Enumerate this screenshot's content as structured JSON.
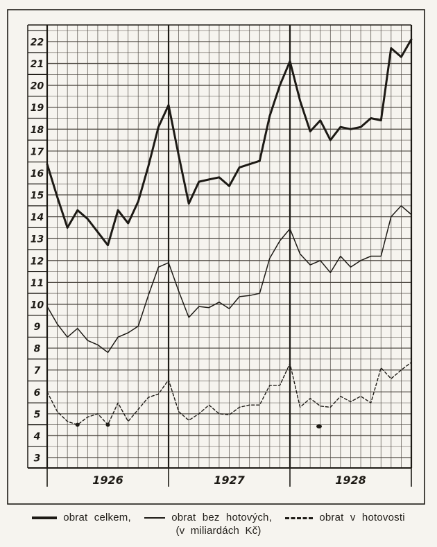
{
  "figure": {
    "legend": [
      {
        "label": "obrat celkem,",
        "style": "thick"
      },
      {
        "label": "obrat bez hotových,",
        "style": "thin"
      },
      {
        "label": "obrat v hotovosti",
        "style": "dashed"
      }
    ],
    "caption": "(v miliardách Kč)"
  },
  "chart_data": {
    "type": "line",
    "title": "",
    "unit": "miliardy Kč",
    "x_axis": {
      "year_labels": [
        "1926",
        "1927",
        "1928"
      ],
      "months_per_year": 12,
      "points_note": "37 monthly points: left plot edge (start of 1926) to right plot edge (end of 1928); year-boundary gridlines are thicker"
    },
    "y_axis": {
      "ticks": [
        22,
        21,
        20,
        19,
        18,
        17,
        16,
        15,
        14,
        13,
        12,
        11,
        10,
        9,
        8,
        7,
        6,
        5,
        4,
        3
      ],
      "min": 3,
      "max": 22,
      "minor_grid_step": 0.5
    },
    "grid": true,
    "legend_position": "below",
    "series": [
      {
        "name": "obrat celkem",
        "style": "thick",
        "values": [
          16.4,
          14.9,
          13.5,
          14.3,
          13.9,
          13.3,
          12.7,
          14.3,
          13.7,
          14.7,
          16.3,
          18.1,
          19.1,
          16.8,
          14.6,
          15.6,
          15.7,
          15.8,
          15.4,
          16.25,
          16.4,
          16.55,
          18.6,
          20.0,
          21.1,
          19.3,
          17.9,
          18.4,
          17.5,
          18.1,
          18.0,
          18.1,
          18.5,
          18.4,
          21.7,
          21.3,
          22.1
        ]
      },
      {
        "name": "obrat bez hotových",
        "style": "thin",
        "values": [
          9.9,
          9.1,
          8.5,
          8.9,
          8.35,
          8.15,
          7.8,
          8.5,
          8.7,
          9.0,
          10.4,
          11.7,
          11.9,
          10.6,
          9.4,
          9.9,
          9.85,
          10.1,
          9.8,
          10.35,
          10.4,
          10.5,
          12.1,
          12.9,
          13.45,
          12.3,
          11.8,
          12.0,
          11.45,
          12.2,
          11.7,
          12.0,
          12.2,
          12.2,
          14.0,
          14.5,
          14.1
        ]
      },
      {
        "name": "obrat v hotovosti",
        "style": "dashed",
        "values": [
          6.0,
          5.1,
          4.65,
          4.5,
          4.85,
          5.0,
          4.5,
          5.5,
          4.65,
          5.2,
          5.75,
          5.9,
          6.55,
          5.1,
          4.7,
          5.0,
          5.4,
          5.0,
          4.95,
          5.3,
          5.4,
          5.4,
          6.3,
          6.3,
          7.3,
          5.3,
          5.7,
          5.35,
          5.3,
          5.8,
          5.55,
          5.8,
          5.5,
          7.1,
          6.6,
          7.0,
          7.35
        ]
      }
    ],
    "vertex_dots_on_dashed": [
      3,
      6
    ],
    "artifact_dot": {
      "x": 460,
      "y": 615
    }
  }
}
